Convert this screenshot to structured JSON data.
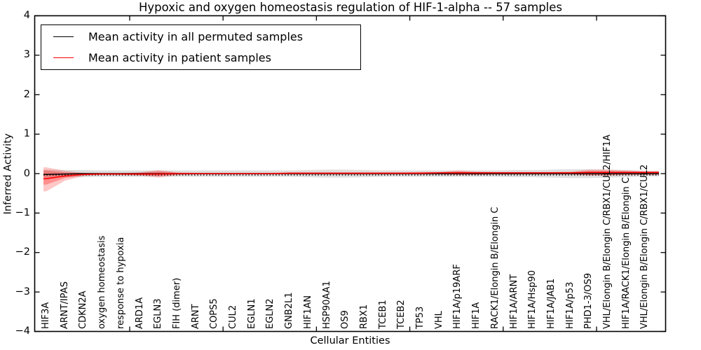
{
  "figure": {
    "title": "Hypoxic and oxygen homeostasis regulation of HIF-1-alpha -- 57 samples",
    "xlabel": "Cellular Entities",
    "ylabel": "Inferred Activity"
  },
  "legend": {
    "entries": [
      {
        "label": "Mean activity in all permuted samples",
        "color": "#000000"
      },
      {
        "label": "Mean activity in patient samples",
        "color": "#ff0000"
      }
    ]
  },
  "chart_data": {
    "type": "line",
    "title": "Hypoxic and oxygen homeostasis regulation of HIF-1-alpha -- 57 samples",
    "xlabel": "Cellular Entities",
    "ylabel": "Inferred Activity",
    "ylim": [
      -4,
      4
    ],
    "yticks": [
      -4,
      -3,
      -2,
      -1,
      0,
      1,
      2,
      3,
      4
    ],
    "ytick_labels": [
      "−4",
      "−3",
      "−2",
      "−1",
      "0",
      "1",
      "2",
      "3",
      "4"
    ],
    "grid": false,
    "legend_position": "upper left",
    "categories": [
      "HIF3A",
      "ARNT/IPAS",
      "CDKN2A",
      "oxygen homeostasis",
      "response to hypoxia",
      "ARD1A",
      "EGLN3",
      "FIH (dimer)",
      "ARNT",
      "COPS5",
      "CUL2",
      "EGLN1",
      "EGLN2",
      "GNB2L1",
      "HIF1AN",
      "HSP90AA1",
      "OS9",
      "RBX1",
      "TCEB1",
      "TCEB2",
      "TP53",
      "VHL",
      "HIF1A/p19ARF",
      "HIF1A",
      "RACK1/Elongin B/Elongin C",
      "HIF1A/ARNT",
      "HIF1A/Hsp90",
      "HIF1A/JAB1",
      "HIF1A/p53",
      "PHD1-3/OS9",
      "VHL/Elongin B/Elongin C/RBX1/CUL2/HIF1A",
      "HIF1A/RACK1/Elongin B/Elongin C",
      "VHL/Elongin B/Elongin C/RBX1/CUL2"
    ],
    "series": [
      {
        "name": "Mean activity in all permuted samples",
        "color": "#000000",
        "style": "solid",
        "values": [
          -0.02,
          -0.01,
          0,
          0,
          0,
          0,
          0,
          0,
          0,
          0,
          0,
          0,
          0,
          0,
          0,
          0,
          0,
          0,
          0,
          0,
          0,
          0,
          0,
          0,
          0,
          0,
          0,
          0,
          0,
          0,
          0,
          0,
          0
        ]
      },
      {
        "name": "Mean activity in patient samples",
        "color": "#ff0000",
        "style": "solid",
        "values": [
          -0.13,
          -0.06,
          -0.02,
          -0.01,
          -0.01,
          -0.01,
          -0.01,
          0,
          0,
          0,
          0,
          0,
          0,
          0.01,
          0.01,
          0.01,
          0.01,
          0.01,
          0.01,
          0.01,
          0.01,
          0.02,
          0.02,
          0.02,
          0.02,
          0.02,
          0.02,
          0.02,
          0.02,
          0.03,
          0.03,
          0.03,
          0.03
        ]
      }
    ],
    "bands": [
      {
        "name": "permuted-range",
        "color": "rgba(0,0,0,0.13)",
        "upper": [
          0.1,
          0.09,
          0.09,
          0.08,
          0.08,
          0.08,
          0.08,
          0.08,
          0.08,
          0.08,
          0.08,
          0.08,
          0.08,
          0.08,
          0.09,
          0.1,
          0.1,
          0.09,
          0.08,
          0.08,
          0.08,
          0.08,
          0.08,
          0.08,
          0.08,
          0.09,
          0.09,
          0.1,
          0.11,
          0.11,
          0.1,
          0.09,
          0.07
        ],
        "lower": [
          -0.1,
          -0.09,
          -0.09,
          -0.08,
          -0.08,
          -0.08,
          -0.08,
          -0.08,
          -0.08,
          -0.08,
          -0.08,
          -0.08,
          -0.08,
          -0.08,
          -0.09,
          -0.1,
          -0.1,
          -0.09,
          -0.08,
          -0.08,
          -0.08,
          -0.08,
          -0.08,
          -0.08,
          -0.08,
          -0.09,
          -0.09,
          -0.1,
          -0.11,
          -0.11,
          -0.1,
          -0.09,
          -0.07
        ]
      },
      {
        "name": "patient-range-outer",
        "color": "rgba(255,0,0,0.22)",
        "upper": [
          0.16,
          0.07,
          0.02,
          0.01,
          0.01,
          0.03,
          0.09,
          0.03,
          0.02,
          0.02,
          0.02,
          0.02,
          0.02,
          0.03,
          0.03,
          0.03,
          0.03,
          0.03,
          0.03,
          0.03,
          0.04,
          0.04,
          0.08,
          0.05,
          0.04,
          0.04,
          0.04,
          0.04,
          0.05,
          0.1,
          0.1,
          0.08,
          0.06
        ],
        "lower": [
          -0.45,
          -0.18,
          -0.06,
          -0.03,
          -0.03,
          -0.05,
          -0.1,
          -0.04,
          -0.02,
          -0.02,
          -0.02,
          -0.02,
          -0.02,
          -0.02,
          -0.02,
          -0.02,
          -0.02,
          -0.02,
          -0.02,
          -0.02,
          -0.02,
          -0.02,
          -0.04,
          -0.03,
          -0.02,
          -0.02,
          -0.02,
          -0.02,
          -0.02,
          -0.05,
          -0.05,
          -0.04,
          -0.03
        ]
      },
      {
        "name": "patient-range-inner",
        "color": "rgba(255,0,0,0.28)",
        "upper": [
          0.08,
          0.03,
          0.01,
          0.01,
          0.01,
          0.02,
          0.05,
          0.02,
          0.01,
          0.01,
          0.01,
          0.01,
          0.01,
          0.02,
          0.02,
          0.02,
          0.02,
          0.02,
          0.02,
          0.02,
          0.03,
          0.03,
          0.05,
          0.03,
          0.03,
          0.03,
          0.03,
          0.03,
          0.03,
          0.06,
          0.06,
          0.05,
          0.04
        ],
        "lower": [
          -0.28,
          -0.11,
          -0.04,
          -0.02,
          -0.02,
          -0.03,
          -0.06,
          -0.02,
          -0.01,
          -0.01,
          -0.01,
          -0.01,
          -0.01,
          -0.01,
          -0.01,
          -0.01,
          -0.01,
          -0.01,
          -0.01,
          -0.01,
          -0.01,
          -0.01,
          -0.02,
          -0.02,
          -0.01,
          -0.01,
          -0.01,
          -0.01,
          -0.01,
          -0.03,
          -0.03,
          -0.02,
          -0.02
        ]
      }
    ],
    "zero_reference_line": {
      "value": -0.035,
      "style": "dotted",
      "color": "#000000"
    }
  }
}
